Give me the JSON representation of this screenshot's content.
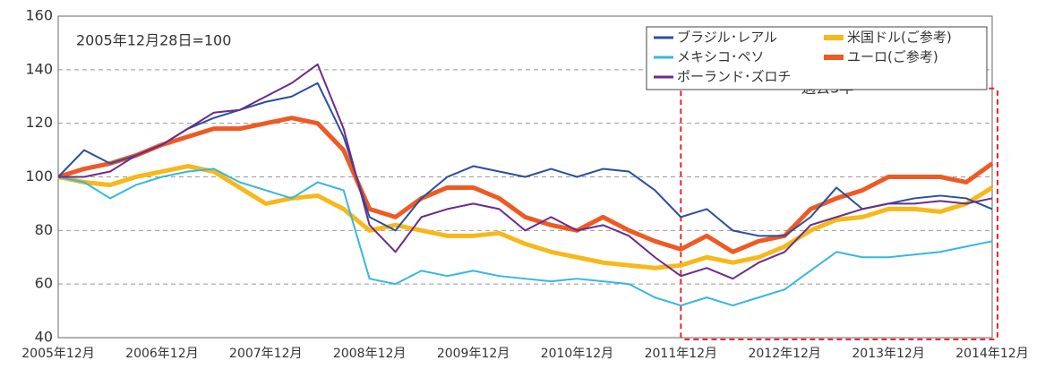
{
  "chart_data": {
    "type": "line",
    "categories": [
      "2005年12月",
      null,
      null,
      null,
      "2006年12月",
      null,
      null,
      null,
      "2007年12月",
      null,
      null,
      null,
      "2008年12月",
      null,
      null,
      null,
      "2009年12月",
      null,
      null,
      null,
      "2010年12月",
      null,
      null,
      null,
      "2011年12月",
      null,
      null,
      null,
      "2012年12月",
      null,
      null,
      null,
      "2013年12月",
      null,
      null,
      null,
      "2014年12月"
    ],
    "series": [
      {
        "name": "ブラジル･レアル",
        "color": "#2a4f9c",
        "line_width": 2,
        "values": [
          100,
          110,
          105,
          108,
          112,
          118,
          122,
          125,
          128,
          130,
          135,
          115,
          85,
          80,
          92,
          100,
          104,
          102,
          100,
          103,
          100,
          103,
          102,
          95,
          85,
          88,
          80,
          78,
          78,
          85,
          96,
          88,
          90,
          92,
          93,
          92,
          88
        ]
      },
      {
        "name": "メキシコ･ペソ",
        "color": "#35b8e0",
        "line_width": 2,
        "values": [
          100,
          98,
          92,
          97,
          100,
          102,
          103,
          98,
          95,
          92,
          98,
          95,
          62,
          60,
          65,
          63,
          65,
          63,
          62,
          61,
          62,
          61,
          60,
          55,
          52,
          55,
          52,
          55,
          58,
          65,
          72,
          70,
          70,
          71,
          72,
          74,
          76
        ]
      },
      {
        "name": "ポーランド･ズロチ",
        "color": "#6a2c8c",
        "line_width": 2,
        "values": [
          100,
          100,
          102,
          108,
          112,
          118,
          124,
          125,
          130,
          135,
          142,
          118,
          82,
          72,
          85,
          88,
          90,
          88,
          80,
          85,
          80,
          82,
          78,
          70,
          63,
          66,
          62,
          68,
          72,
          82,
          85,
          88,
          90,
          90,
          91,
          90,
          92
        ]
      },
      {
        "name": "米国ドル(ご参考)",
        "color": "#f7b81a",
        "line_width": 5,
        "values": [
          100,
          98,
          97,
          100,
          102,
          104,
          102,
          96,
          90,
          92,
          93,
          88,
          80,
          82,
          80,
          78,
          78,
          79,
          75,
          72,
          70,
          68,
          67,
          66,
          67,
          70,
          68,
          70,
          74,
          80,
          84,
          85,
          88,
          88,
          87,
          90,
          96
        ]
      },
      {
        "name": "ユーロ(ご参考)",
        "color": "#ee5a24",
        "line_width": 5,
        "values": [
          100,
          103,
          105,
          108,
          112,
          115,
          118,
          118,
          120,
          122,
          120,
          110,
          88,
          85,
          92,
          96,
          96,
          92,
          85,
          82,
          80,
          85,
          80,
          76,
          73,
          78,
          72,
          76,
          78,
          88,
          92,
          95,
          100,
          100,
          100,
          98,
          105
        ]
      }
    ],
    "ylim": [
      40,
      160
    ],
    "yticks": [
      40,
      60,
      80,
      100,
      120,
      140,
      160
    ],
    "grid": true,
    "legend": "upper right",
    "annotations": [
      "2005年12月28日=100",
      "過去3年"
    ]
  }
}
